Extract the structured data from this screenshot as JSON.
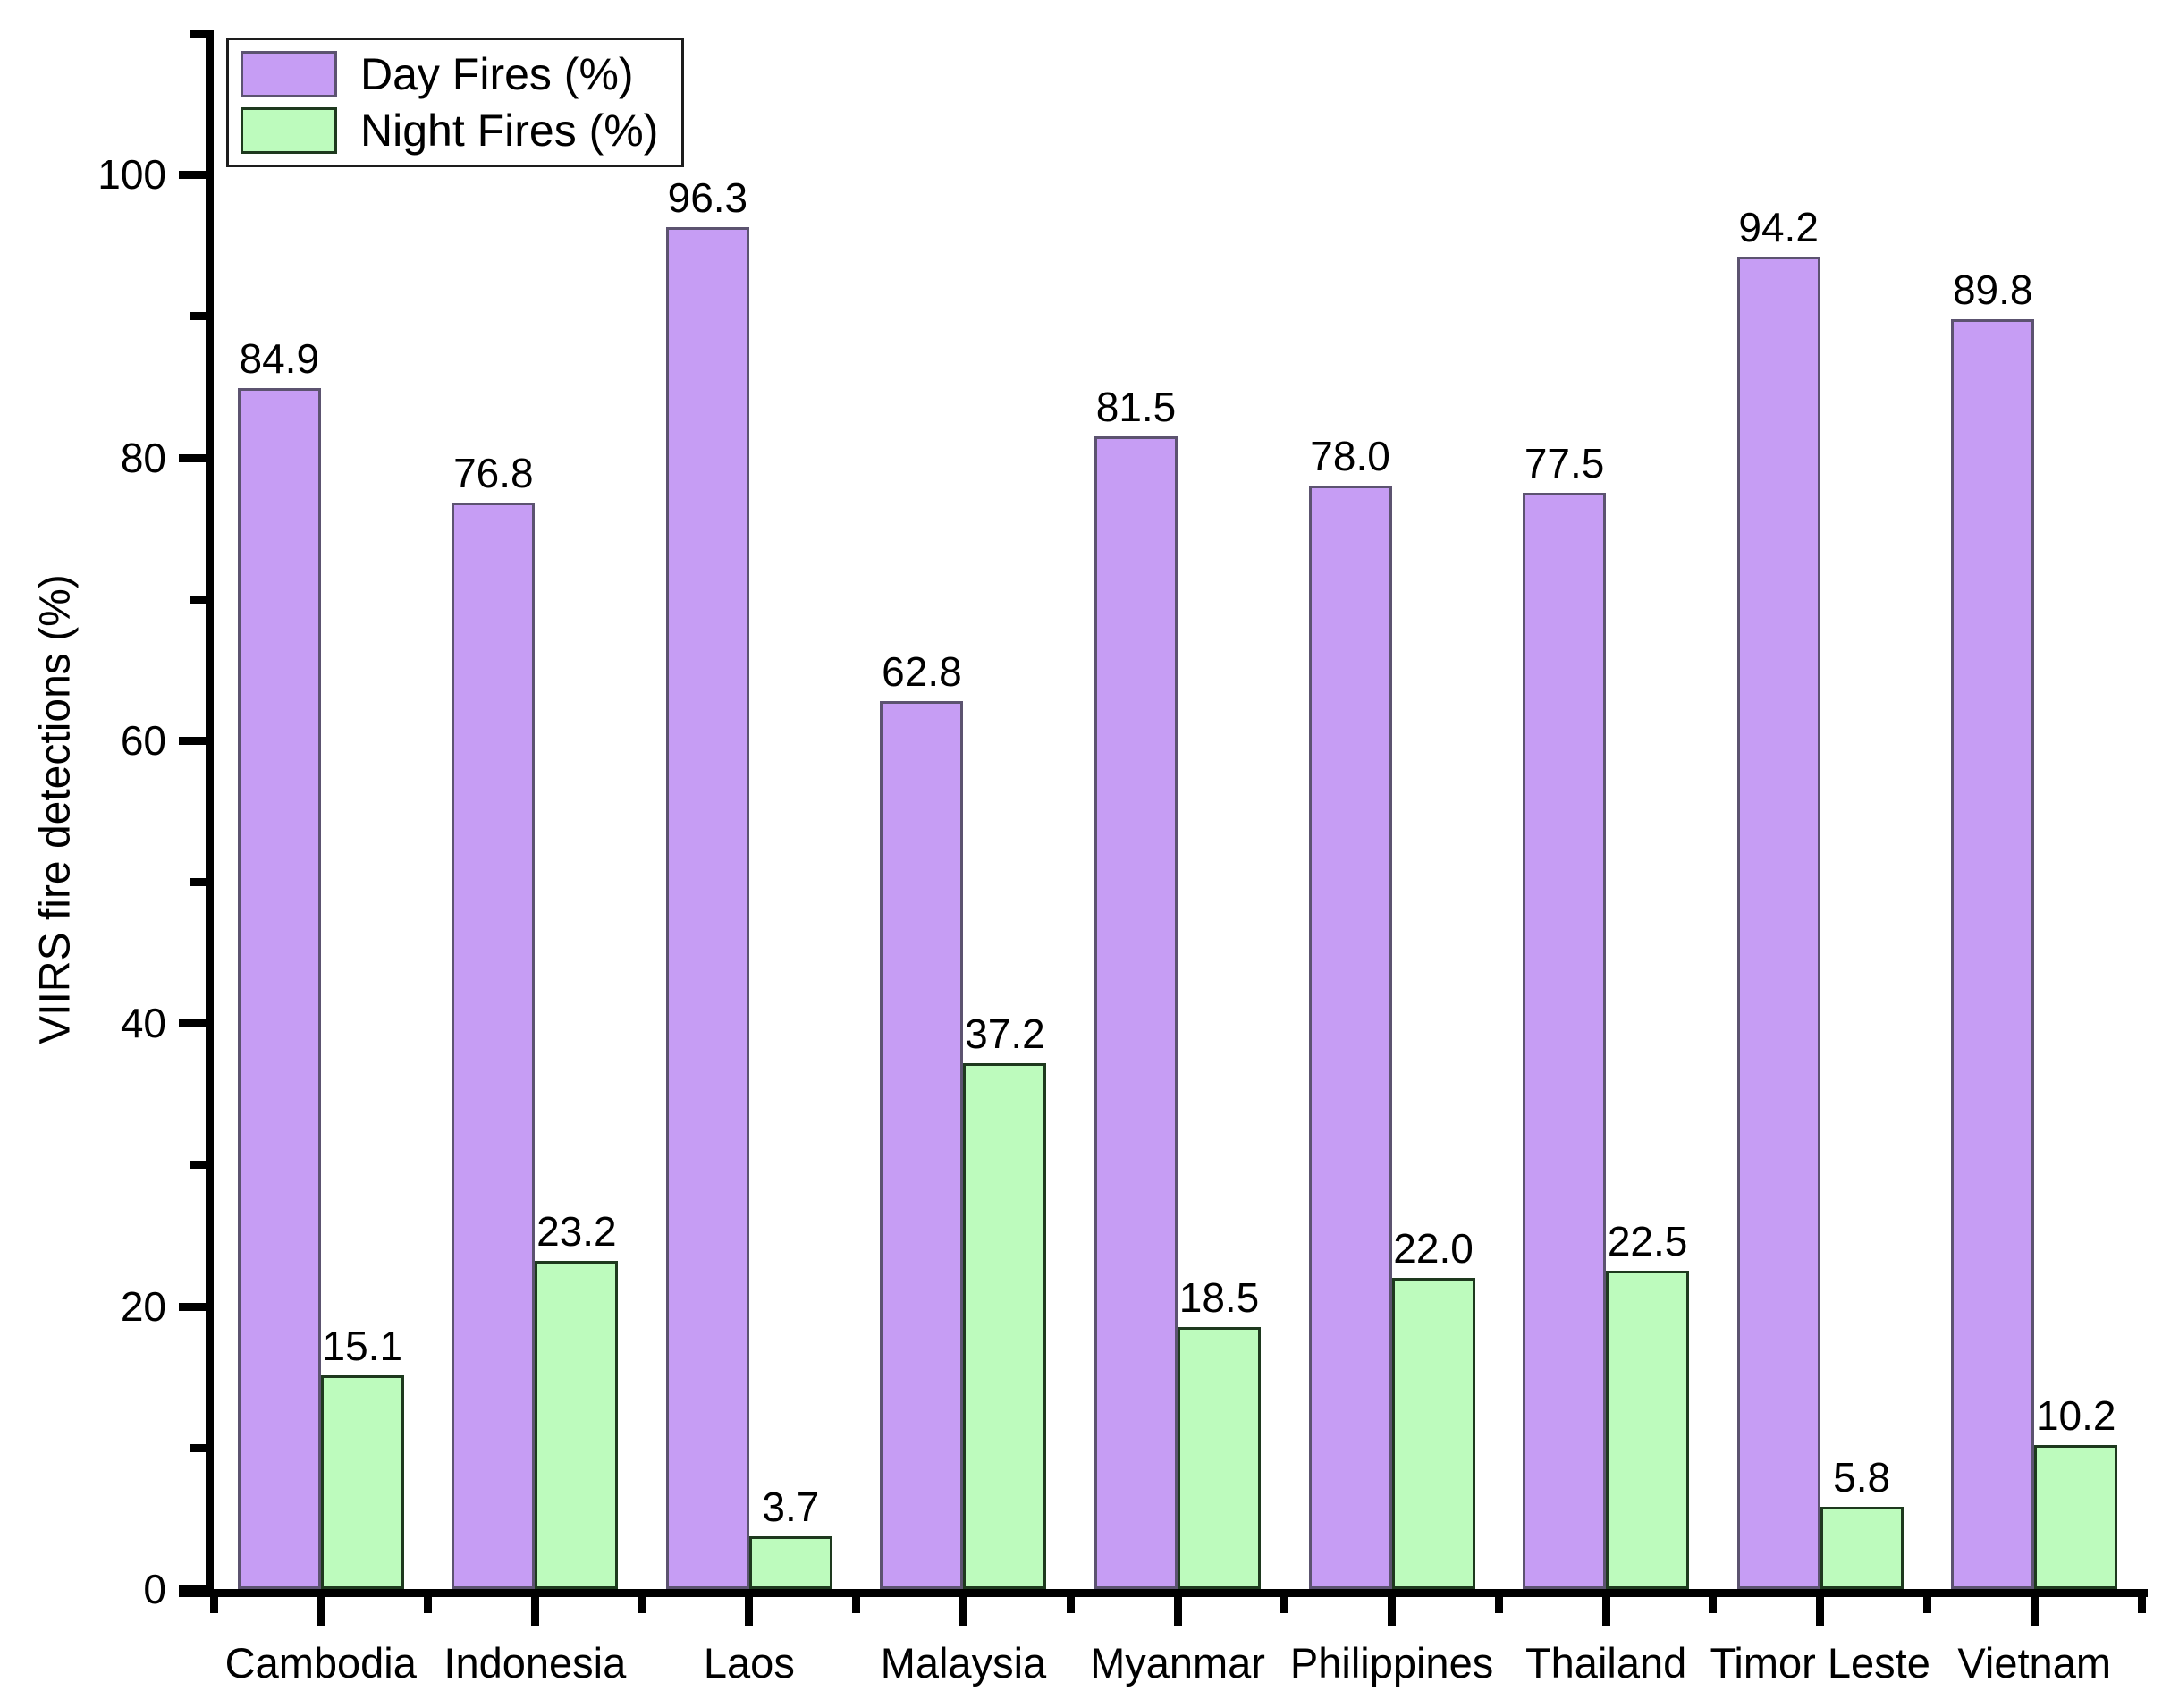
{
  "chart_data": {
    "type": "bar",
    "title": "",
    "xlabel": "",
    "ylabel": "VIIRS fire detections (%)",
    "categories": [
      "Cambodia",
      "Indonesia",
      "Laos",
      "Malaysia",
      "Myanmar",
      "Philippines",
      "Thailand",
      "Timor Leste",
      "Vietnam"
    ],
    "series": [
      {
        "name": "Day Fires (%)",
        "values": [
          84.9,
          76.8,
          96.3,
          62.8,
          81.5,
          78.0,
          77.5,
          94.2,
          89.8
        ],
        "fill_color": "#c69df4",
        "border_color": "#5c5370"
      },
      {
        "name": "Night Fires (%)",
        "values": [
          15.1,
          23.2,
          3.7,
          37.2,
          18.5,
          22.0,
          22.5,
          5.8,
          10.2
        ],
        "fill_color": "#bdfbbd",
        "border_color": "#1e391e"
      }
    ],
    "ylim": [
      0,
      110
    ],
    "yticks_major": [
      0,
      20,
      40,
      60,
      80,
      100
    ],
    "yticks_minor": [
      10,
      30,
      50,
      70,
      90,
      110
    ],
    "value_labels": true,
    "value_label_decimals": 1,
    "grid": false,
    "legend_position": "top-left",
    "axis_color": "#000000",
    "background_color": "#ffffff"
  }
}
